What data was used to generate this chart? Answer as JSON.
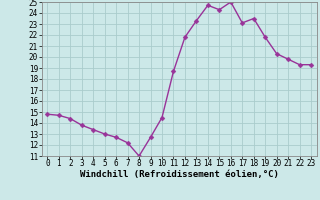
{
  "x": [
    0,
    1,
    2,
    3,
    4,
    5,
    6,
    7,
    8,
    9,
    10,
    11,
    12,
    13,
    14,
    15,
    16,
    17,
    18,
    19,
    20,
    21,
    22,
    23
  ],
  "y": [
    14.8,
    14.7,
    14.4,
    13.8,
    13.4,
    13.0,
    12.7,
    12.2,
    11.0,
    12.7,
    14.5,
    18.7,
    21.8,
    23.3,
    24.7,
    24.3,
    25.0,
    23.1,
    23.5,
    21.8,
    20.3,
    19.8,
    19.3,
    19.3
  ],
  "line_color": "#993399",
  "marker_color": "#993399",
  "bg_color": "#cce8e8",
  "grid_color": "#aacccc",
  "xlabel": "Windchill (Refroidissement éolien,°C)",
  "ylim": [
    11,
    25
  ],
  "xlim": [
    -0.5,
    23.5
  ],
  "yticks": [
    11,
    12,
    13,
    14,
    15,
    16,
    17,
    18,
    19,
    20,
    21,
    22,
    23,
    24,
    25
  ],
  "xticks": [
    0,
    1,
    2,
    3,
    4,
    5,
    6,
    7,
    8,
    9,
    10,
    11,
    12,
    13,
    14,
    15,
    16,
    17,
    18,
    19,
    20,
    21,
    22,
    23
  ],
  "xlabel_fontsize": 6.5,
  "tick_fontsize": 5.5,
  "line_width": 1.0,
  "marker_size": 2.5
}
